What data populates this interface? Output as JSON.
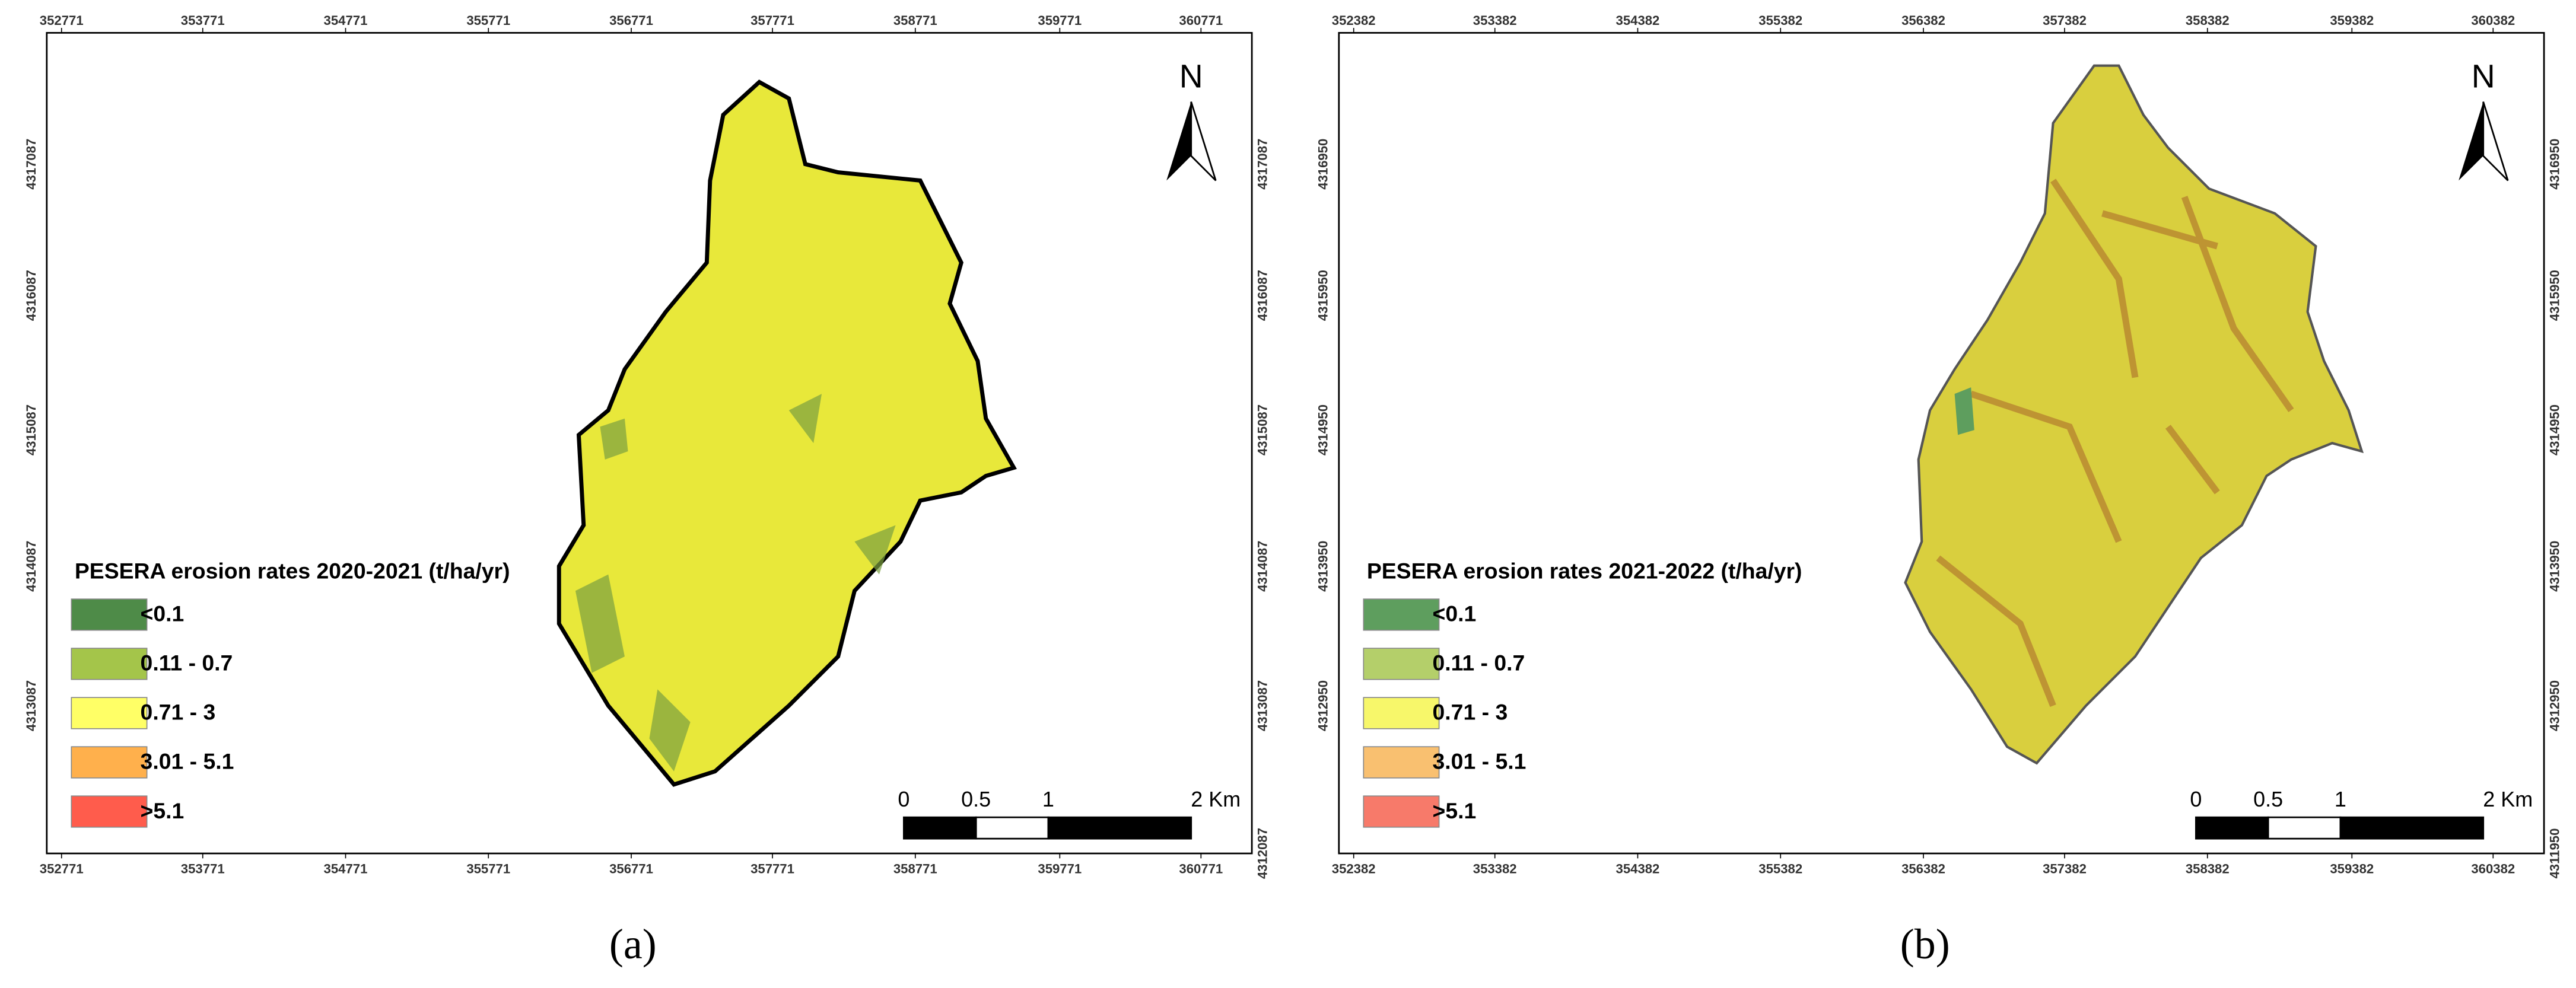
{
  "panels": [
    {
      "caption": "(a)",
      "north": "N",
      "legend": {
        "title": "PESERA erosion rates 2020-2021 (t/ha/yr)",
        "items": [
          {
            "label": "<0.1",
            "color": "#4e8b48"
          },
          {
            "label": "0.11 - 0.7",
            "color": "#a4c54a"
          },
          {
            "label": "0.71 - 3",
            "color": "#ffff66"
          },
          {
            "label": "3.01 - 5.1",
            "color": "#ffb04c"
          },
          {
            "label": ">5.1",
            "color": "#ff5c4c"
          }
        ]
      },
      "scale_bar": [
        "0",
        "0.5",
        "1",
        "2 Km"
      ],
      "top_ticks": [
        "352771",
        "353771",
        "354771",
        "355771",
        "356771",
        "357771",
        "358771",
        "359771",
        "360771"
      ],
      "bottom_ticks": [
        "352771",
        "353771",
        "354771",
        "355771",
        "356771",
        "357771",
        "358771",
        "359771",
        "360771"
      ],
      "left_ticks": [
        "4317087",
        "4316087",
        "4315087",
        "4314087",
        "4313087"
      ],
      "right_ticks": [
        "4317087",
        "4316087",
        "4315087",
        "4314087",
        "4313087"
      ],
      "corner_tick": "4312087"
    },
    {
      "caption": "(b)",
      "north": "N",
      "legend": {
        "title": "PESERA erosion rates 2021-2022 (t/ha/yr)",
        "items": [
          {
            "label": "<0.1",
            "color": "#5e9e5e"
          },
          {
            "label": "0.11 - 0.7",
            "color": "#b4cf6a"
          },
          {
            "label": "0.71 - 3",
            "color": "#f7f76a"
          },
          {
            "label": "3.01 - 5.1",
            "color": "#f9c070"
          },
          {
            "label": ">5.1",
            "color": "#f77a6a"
          }
        ]
      },
      "scale_bar": [
        "0",
        "0.5",
        "1",
        "2 Km"
      ],
      "top_ticks": [
        "352382",
        "353382",
        "354382",
        "355382",
        "356382",
        "357382",
        "358382",
        "359382",
        "360382"
      ],
      "bottom_ticks": [
        "352382",
        "353382",
        "354382",
        "355382",
        "356382",
        "357382",
        "358382",
        "359382",
        "360382"
      ],
      "left_ticks": [
        "4316950",
        "4315950",
        "4314950",
        "4313950",
        "4312950"
      ],
      "right_ticks": [
        "4316950",
        "4315950",
        "4314950",
        "4313950",
        "4312950"
      ],
      "corner_tick": "4311950"
    }
  ]
}
